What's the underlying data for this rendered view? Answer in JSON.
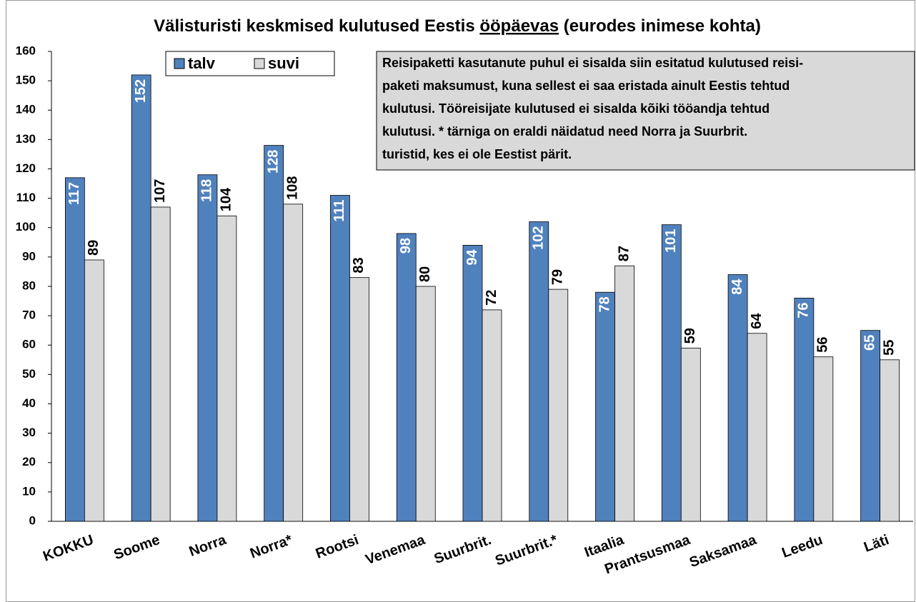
{
  "chart_data": {
    "type": "bar",
    "title": {
      "before": "Välisturisti keskmised kulutused Eestis",
      "underlined": "ööpäevas",
      "after": "(eurodes inimese kohta)"
    },
    "categories": [
      "KOKKU",
      "Soome",
      "Norra",
      "Norra*",
      "Rootsi",
      "Venemaa",
      "Suurbrit.",
      "Suurbrit.*",
      "Itaalia",
      "Prantsusmaa",
      "Saksamaa",
      "Leedu",
      "Läti"
    ],
    "series": [
      {
        "name": "talv",
        "color": "#4f81bd",
        "values": [
          117,
          152,
          118,
          128,
          111,
          98,
          94,
          102,
          78,
          101,
          84,
          76,
          65
        ]
      },
      {
        "name": "suvi",
        "color": "#d9d9d9",
        "values": [
          89,
          107,
          104,
          108,
          83,
          80,
          72,
          79,
          87,
          59,
          64,
          56,
          55
        ]
      }
    ],
    "ylim": [
      0,
      160
    ],
    "yticks": [
      0,
      10,
      20,
      30,
      40,
      50,
      60,
      70,
      80,
      90,
      100,
      110,
      120,
      130,
      140,
      150,
      160
    ],
    "grid": false,
    "legend": "top-left",
    "annotation": [
      "Reisipaketti kasutanute puhul ei sisalda siin esitatud kulutused reisi-",
      "paketi maksumust, kuna sellest ei saa eristada ainult Eestis tehtud",
      "kulutusi. Tööreisijate kulutused ei sisalda kõiki tööandja tehtud",
      "kulutusi.   * tärniga on eraldi näidatud  need Norra ja Suurbrit.",
      "turistid, kes ei ole Eestist pärit."
    ]
  }
}
